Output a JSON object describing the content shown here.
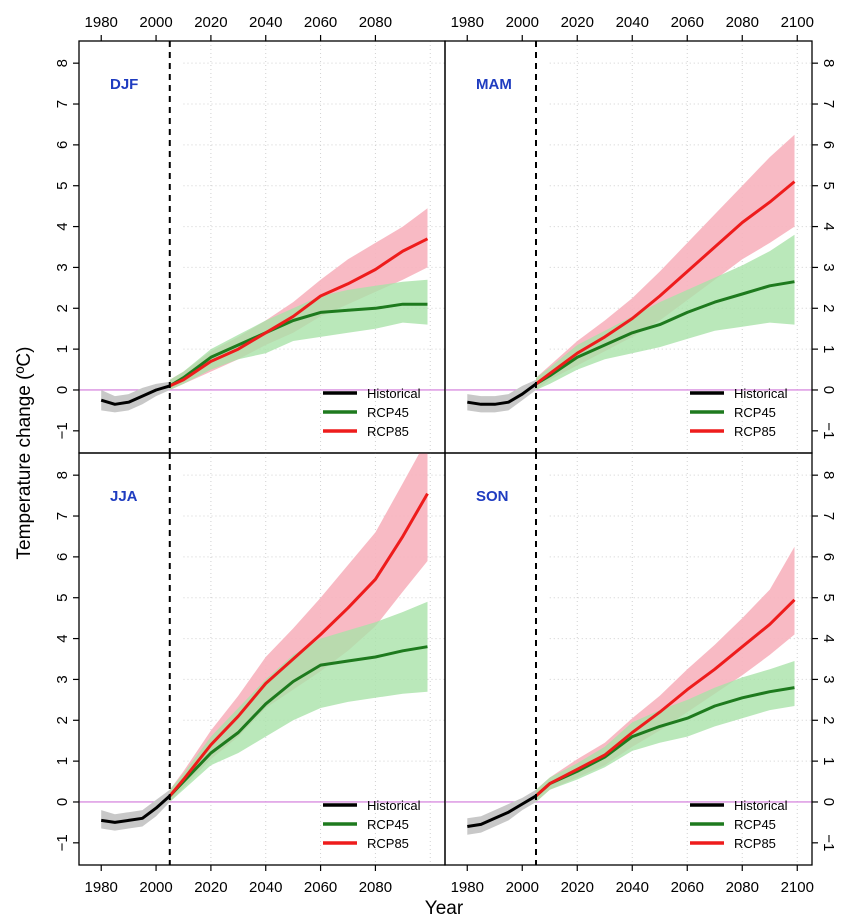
{
  "chart_data": {
    "type": "line",
    "ylabel": "Temperature change (ºC)",
    "xlabel": "Year",
    "x_ticks": [
      "1980",
      "2000",
      "2020",
      "2040",
      "2060",
      "2080",
      "2100"
    ],
    "y_ticks": [
      "−1",
      "0",
      "1",
      "2",
      "3",
      "4",
      "5",
      "6",
      "7",
      "8"
    ],
    "xlim": [
      1977,
      2101
    ],
    "ylim": [
      -1.2,
      8.2
    ],
    "reference_year": 2005,
    "grid": true,
    "legend": {
      "placement": "bottom-right",
      "entries": [
        {
          "name": "Historical",
          "color": "#000000"
        },
        {
          "name": "RCP45",
          "color": "#1e7a1e"
        },
        {
          "name": "RCP85",
          "color": "#ee1c1c"
        }
      ]
    },
    "colors": {
      "historical_band": "#c8c8c8",
      "rcp45_band": "#a9e2a9",
      "rcp85_band": "#f7b3be",
      "zero_line": "#d98fe0",
      "panel_label": "#1f3cc0"
    },
    "panels": [
      {
        "label": "DJF",
        "x_end": 2099,
        "historical": {
          "x": [
            1980,
            1985,
            1990,
            1995,
            2000,
            2005
          ],
          "y": [
            -0.25,
            -0.35,
            -0.3,
            -0.15,
            0.0,
            0.1
          ],
          "lo": [
            -0.5,
            -0.55,
            -0.5,
            -0.35,
            -0.15,
            0.0
          ],
          "hi": [
            0.0,
            -0.15,
            -0.1,
            0.05,
            0.15,
            0.2
          ]
        },
        "rcp45": {
          "x": [
            2005,
            2010,
            2020,
            2030,
            2040,
            2050,
            2060,
            2070,
            2080,
            2090,
            2099
          ],
          "y": [
            0.1,
            0.3,
            0.8,
            1.1,
            1.4,
            1.7,
            1.9,
            1.95,
            2.0,
            2.1,
            2.1
          ],
          "lo": [
            0.0,
            0.15,
            0.5,
            0.75,
            0.9,
            1.2,
            1.3,
            1.4,
            1.5,
            1.65,
            1.6
          ],
          "hi": [
            0.25,
            0.45,
            1.0,
            1.35,
            1.7,
            2.0,
            2.3,
            2.45,
            2.55,
            2.65,
            2.7
          ]
        },
        "rcp85": {
          "x": [
            2005,
            2010,
            2020,
            2030,
            2040,
            2050,
            2060,
            2070,
            2080,
            2090,
            2099
          ],
          "y": [
            0.1,
            0.25,
            0.7,
            1.0,
            1.4,
            1.8,
            2.3,
            2.6,
            2.95,
            3.4,
            3.7
          ],
          "lo": [
            0.0,
            0.15,
            0.45,
            0.75,
            1.1,
            1.4,
            1.8,
            2.1,
            2.4,
            2.7,
            3.0
          ],
          "hi": [
            0.25,
            0.45,
            0.95,
            1.3,
            1.7,
            2.15,
            2.7,
            3.2,
            3.6,
            4.0,
            4.45
          ]
        }
      },
      {
        "label": "MAM",
        "x_end": 2099,
        "historical": {
          "x": [
            1980,
            1985,
            1990,
            1995,
            2000,
            2005
          ],
          "y": [
            -0.3,
            -0.35,
            -0.35,
            -0.3,
            -0.1,
            0.15
          ],
          "lo": [
            -0.5,
            -0.55,
            -0.55,
            -0.5,
            -0.25,
            0.0
          ],
          "hi": [
            -0.1,
            -0.15,
            -0.15,
            -0.1,
            0.1,
            0.25
          ]
        },
        "rcp45": {
          "x": [
            2005,
            2010,
            2020,
            2030,
            2040,
            2050,
            2060,
            2070,
            2080,
            2090,
            2099
          ],
          "y": [
            0.15,
            0.35,
            0.8,
            1.1,
            1.4,
            1.6,
            1.9,
            2.15,
            2.35,
            2.55,
            2.65
          ],
          "lo": [
            0.0,
            0.15,
            0.5,
            0.75,
            0.9,
            1.05,
            1.25,
            1.45,
            1.55,
            1.65,
            1.6
          ],
          "hi": [
            0.3,
            0.55,
            1.1,
            1.45,
            1.8,
            2.15,
            2.45,
            2.75,
            3.05,
            3.4,
            3.8
          ]
        },
        "rcp85": {
          "x": [
            2005,
            2010,
            2020,
            2030,
            2040,
            2050,
            2060,
            2070,
            2080,
            2090,
            2099
          ],
          "y": [
            0.15,
            0.4,
            0.9,
            1.3,
            1.75,
            2.3,
            2.9,
            3.5,
            4.1,
            4.6,
            5.1
          ],
          "lo": [
            0.0,
            0.25,
            0.6,
            0.95,
            1.3,
            1.7,
            2.2,
            2.7,
            3.2,
            3.6,
            4.0
          ],
          "hi": [
            0.3,
            0.6,
            1.2,
            1.7,
            2.25,
            2.9,
            3.6,
            4.3,
            5.0,
            5.7,
            6.25
          ]
        }
      },
      {
        "label": "JJA",
        "x_end": 2099,
        "historical": {
          "x": [
            1980,
            1985,
            1990,
            1995,
            2000,
            2005
          ],
          "y": [
            -0.45,
            -0.5,
            -0.45,
            -0.4,
            -0.15,
            0.15
          ],
          "lo": [
            -0.65,
            -0.7,
            -0.65,
            -0.6,
            -0.35,
            0.0
          ],
          "hi": [
            -0.2,
            -0.3,
            -0.25,
            -0.2,
            0.05,
            0.3
          ]
        },
        "rcp45": {
          "x": [
            2005,
            2010,
            2020,
            2030,
            2040,
            2050,
            2060,
            2070,
            2080,
            2090,
            2099
          ],
          "y": [
            0.15,
            0.5,
            1.2,
            1.7,
            2.4,
            2.95,
            3.35,
            3.45,
            3.55,
            3.7,
            3.8
          ],
          "lo": [
            0.0,
            0.3,
            0.9,
            1.2,
            1.6,
            2.0,
            2.3,
            2.45,
            2.55,
            2.65,
            2.7
          ],
          "hi": [
            0.3,
            0.7,
            1.6,
            2.3,
            3.0,
            3.6,
            4.0,
            4.2,
            4.4,
            4.65,
            4.9
          ]
        },
        "rcp85": {
          "x": [
            2005,
            2010,
            2020,
            2030,
            2040,
            2050,
            2060,
            2070,
            2080,
            2090,
            2099
          ],
          "y": [
            0.15,
            0.55,
            1.4,
            2.1,
            2.9,
            3.5,
            4.1,
            4.75,
            5.45,
            6.5,
            7.55
          ],
          "lo": [
            0.0,
            0.35,
            1.05,
            1.6,
            2.3,
            2.75,
            3.2,
            3.7,
            4.3,
            5.15,
            5.9
          ],
          "hi": [
            0.3,
            0.75,
            1.75,
            2.6,
            3.55,
            4.25,
            5.0,
            5.8,
            6.6,
            7.8,
            8.9
          ]
        }
      },
      {
        "label": "SON",
        "x_end": 2099,
        "historical": {
          "x": [
            1980,
            1985,
            1990,
            1995,
            2000,
            2005
          ],
          "y": [
            -0.6,
            -0.55,
            -0.4,
            -0.25,
            -0.05,
            0.15
          ],
          "lo": [
            -0.8,
            -0.75,
            -0.6,
            -0.45,
            -0.2,
            0.0
          ],
          "hi": [
            -0.4,
            -0.35,
            -0.2,
            -0.05,
            0.1,
            0.3
          ]
        },
        "rcp45": {
          "x": [
            2005,
            2010,
            2020,
            2030,
            2040,
            2050,
            2060,
            2070,
            2080,
            2090,
            2099
          ],
          "y": [
            0.15,
            0.45,
            0.75,
            1.1,
            1.6,
            1.85,
            2.05,
            2.35,
            2.55,
            2.7,
            2.8
          ],
          "lo": [
            0.0,
            0.3,
            0.55,
            0.85,
            1.25,
            1.45,
            1.6,
            1.85,
            2.05,
            2.25,
            2.35
          ],
          "hi": [
            0.3,
            0.6,
            0.95,
            1.35,
            1.95,
            2.25,
            2.5,
            2.8,
            3.05,
            3.25,
            3.45
          ]
        },
        "rcp85": {
          "x": [
            2005,
            2010,
            2020,
            2030,
            2040,
            2050,
            2060,
            2070,
            2080,
            2090,
            2099
          ],
          "y": [
            0.15,
            0.45,
            0.8,
            1.15,
            1.7,
            2.2,
            2.75,
            3.25,
            3.8,
            4.35,
            4.95
          ],
          "lo": [
            0.0,
            0.3,
            0.6,
            0.9,
            1.35,
            1.75,
            2.2,
            2.65,
            3.1,
            3.6,
            4.1
          ],
          "hi": [
            0.3,
            0.6,
            1.05,
            1.45,
            2.05,
            2.6,
            3.25,
            3.85,
            4.5,
            5.2,
            6.25
          ]
        }
      }
    ]
  }
}
